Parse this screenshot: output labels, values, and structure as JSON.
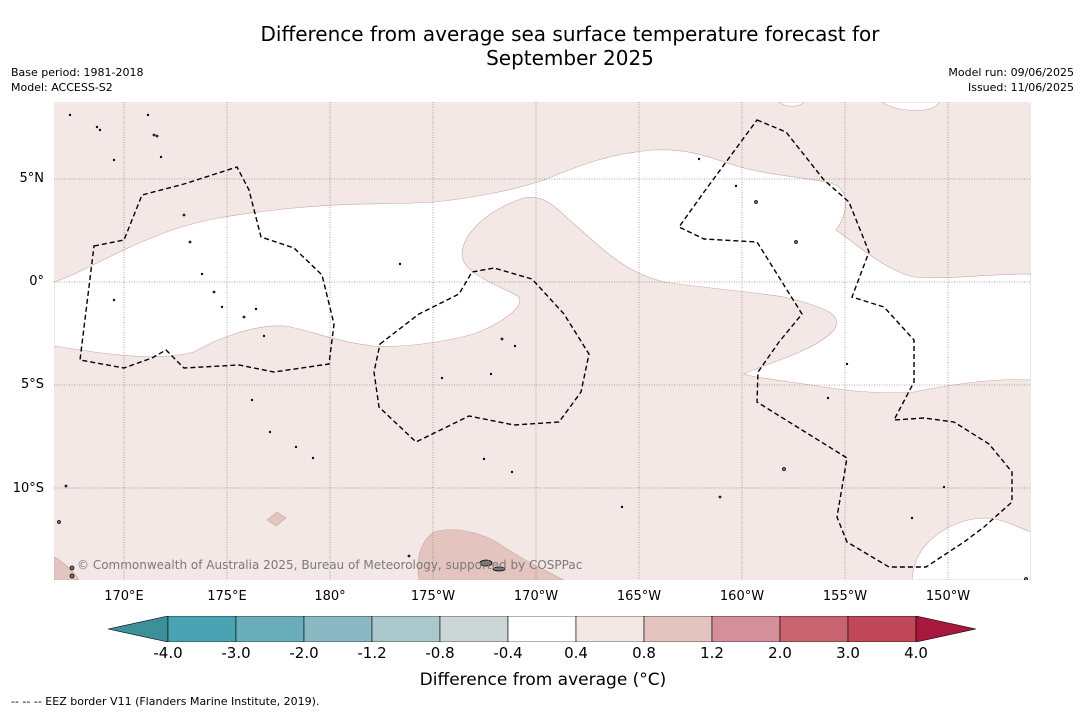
{
  "title_line1": "Difference from average sea surface temperature forecast for",
  "title_line2": "September 2025",
  "base_period": "Base period: 1981-2018",
  "model": "Model: ACCESS-S2",
  "model_run": "Model run: 09/06/2025",
  "issued": "Issued: 11/06/2025",
  "lat_labels": [
    "5°N",
    "0°",
    "5°S",
    "10°S"
  ],
  "lon_labels": [
    "170°E",
    "175°E",
    "180°",
    "175°W",
    "170°W",
    "165°W",
    "160°W",
    "155°W",
    "150°W"
  ],
  "copyright": "© Commonwealth of Australia 2025, Bureau of Meteorology, supported by COSPPac",
  "colorbar": {
    "ticks": [
      "-4.0",
      "-3.0",
      "-2.0",
      "-1.2",
      "-0.8",
      "-0.4",
      "0.4",
      "0.8",
      "1.2",
      "2.0",
      "3.0",
      "4.0"
    ],
    "colors": [
      "#3d8f9a",
      "#4aa3b2",
      "#6aaebc",
      "#8ab9c3",
      "#aac8cc",
      "#ccd6d6",
      "#ffffff",
      "#f4e8e6",
      "#e4c4bf",
      "#d4909a",
      "#c86470",
      "#c04858",
      "#a8183c"
    ],
    "label": "Difference from average (°C)"
  },
  "legend_footnote": "--  --  -- EEZ border V11 (Flanders Marine Institute, 2019).",
  "colors": {
    "warm_light": "#f4e8e6",
    "warm_mid": "#e4c4bf",
    "neutral": "#ffffff",
    "eez_border": "#000000"
  }
}
